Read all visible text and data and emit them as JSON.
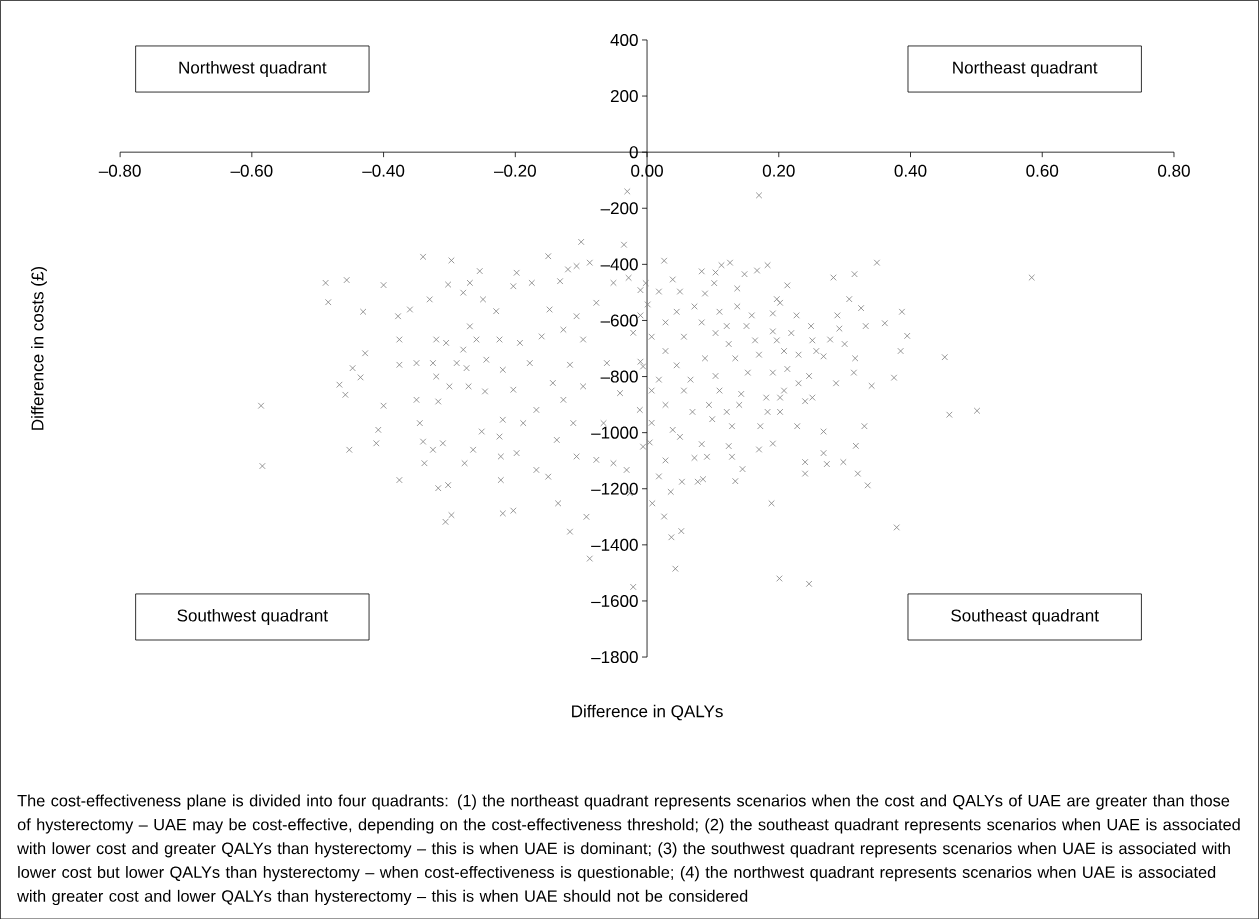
{
  "chart_data": {
    "type": "scatter",
    "xlabel": "Difference in QALYs",
    "ylabel": "Difference in costs (£)",
    "xlim": [
      -0.8,
      0.8
    ],
    "ylim": [
      -1800,
      400
    ],
    "xticks": [
      {
        "value": -0.8,
        "label": "–0.80"
      },
      {
        "value": -0.6,
        "label": "–0.60"
      },
      {
        "value": -0.4,
        "label": "–0.40"
      },
      {
        "value": -0.2,
        "label": "–0.20"
      },
      {
        "value": 0,
        "label": "0.00"
      },
      {
        "value": 0.2,
        "label": "0.20"
      },
      {
        "value": 0.4,
        "label": "0.40"
      },
      {
        "value": 0.6,
        "label": "0.60"
      },
      {
        "value": 0.8,
        "label": "0.80"
      }
    ],
    "yticks": [
      {
        "value": -1800,
        "label": "–1800"
      },
      {
        "value": -1600,
        "label": "–1600"
      },
      {
        "value": -1400,
        "label": "–1400"
      },
      {
        "value": -1200,
        "label": "–1200"
      },
      {
        "value": -1000,
        "label": "–1000"
      },
      {
        "value": -800,
        "label": "–800"
      },
      {
        "value": -600,
        "label": "–600"
      },
      {
        "value": -400,
        "label": "–400"
      },
      {
        "value": -200,
        "label": "–200"
      },
      0,
      200,
      400
    ],
    "marker": "cross",
    "color": "#808080",
    "x": [
      -0.586,
      -0.584,
      -0.488,
      -0.484,
      -0.456,
      -0.431,
      -0.428,
      -0.447,
      -0.435,
      -0.467,
      -0.458,
      -0.4,
      -0.452,
      -0.411,
      -0.408,
      -0.4,
      -0.376,
      -0.34,
      -0.297,
      -0.378,
      -0.376,
      -0.376,
      -0.35,
      -0.33,
      -0.36,
      -0.35,
      -0.345,
      -0.34,
      -0.325,
      -0.338,
      -0.317,
      -0.31,
      -0.317,
      -0.302,
      -0.306,
      -0.297,
      -0.32,
      -0.305,
      -0.325,
      -0.32,
      -0.3,
      -0.289,
      -0.274,
      -0.271,
      -0.279,
      -0.302,
      -0.279,
      -0.269,
      -0.254,
      -0.249,
      -0.269,
      -0.259,
      -0.244,
      -0.246,
      -0.264,
      -0.277,
      -0.251,
      -0.224,
      -0.229,
      -0.219,
      -0.203,
      -0.219,
      -0.224,
      -0.222,
      -0.198,
      -0.222,
      -0.219,
      -0.203,
      -0.198,
      -0.203,
      -0.175,
      -0.193,
      -0.178,
      -0.16,
      -0.148,
      -0.168,
      -0.188,
      -0.168,
      -0.15,
      -0.135,
      -0.15,
      -0.132,
      -0.12,
      -0.127,
      -0.143,
      -0.127,
      -0.137,
      -0.117,
      -0.107,
      -0.097,
      -0.097,
      -0.112,
      -0.107,
      -0.117,
      -0.092,
      -0.087,
      -0.066,
      -0.077,
      -0.051,
      -0.031,
      -0.021,
      -0.026,
      -0.061,
      -0.041,
      -0.077,
      -0.051,
      -0.028,
      -0.021,
      -0.006,
      -0.011,
      -0.006,
      -0.087,
      -0.107,
      -0.03,
      -0.1,
      -0.035,
      0.17,
      0.026,
      0.126,
      0.113,
      0.183,
      0.349,
      0.584,
      0.315,
      0.283,
      0.213,
      0.083,
      0.148,
      0.102,
      0.039,
      0.307,
      0.325,
      0.387,
      0.289,
      0.227,
      0.197,
      0.137,
      0.072,
      0.361,
      0.332,
      0.395,
      0.385,
      0.452,
      0.292,
      0.249,
      0.278,
      0.3,
      0.316,
      0.314,
      0.268,
      0.375,
      0.341,
      0.459,
      0.501,
      0.287,
      0.33,
      0.317,
      0.268,
      0.228,
      0.268,
      0.273,
      0.298,
      0.24,
      0.24,
      0.32,
      0.335,
      0.379,
      0.189,
      0.201,
      0.246,
      0.043,
      0.037,
      0.052,
      0.026,
      0.008,
      0.036,
      0.028,
      0.018,
      0.053,
      0.077,
      0.085,
      0.072,
      0.091,
      0.134,
      0.129,
      0.145,
      0.124,
      0.17,
      0.191,
      0.172,
      0.129,
      0.083,
      0.004,
      0.05,
      0.039,
      0.007,
      0.099,
      0.069,
      0.121,
      0.183,
      0.202,
      0.202,
      0.14,
      0.094,
      0.028,
      0.007,
      0.056,
      0.11,
      0.143,
      0.181,
      0.23,
      0.24,
      0.251,
      0.208,
      0.246,
      0.191,
      0.153,
      0.104,
      0.066,
      0.018,
      -0.01,
      0.045,
      0.088,
      0.134,
      0.17,
      0.208,
      0.23,
      0.257,
      0.213,
      0.164,
      0.197,
      0.124,
      0.056,
      0.007,
      0.028,
      0.104,
      0.151,
      0.191,
      0.219,
      0.251,
      0.028,
      -0.01,
      0.083,
      0.121,
      0.159,
      0.191,
      0.001,
      0.045,
      0.11,
      0.202,
      -0.01,
      0.018,
      0.05,
      0.088,
      0.137,
      -0.002,
      0.104,
      0.167
    ],
    "values": [
      -904,
      -1119,
      -466,
      -535,
      -456,
      -569,
      -717,
      -770,
      -803,
      -829,
      -865,
      -904,
      -1061,
      -1038,
      -990,
      -474,
      -1169,
      -373,
      -386,
      -585,
      -668,
      -758,
      -752,
      -525,
      -561,
      -883,
      -966,
      -1032,
      -1061,
      -1109,
      -889,
      -1038,
      -1198,
      -1187,
      -1318,
      -1294,
      -668,
      -680,
      -752,
      -800,
      -835,
      -752,
      -770,
      -835,
      -704,
      -472,
      -501,
      -466,
      -424,
      -525,
      -621,
      -668,
      -740,
      -853,
      -1061,
      -1109,
      -996,
      -668,
      -567,
      -776,
      -847,
      -954,
      -1014,
      -1085,
      -1073,
      -1169,
      -1288,
      -1278,
      -430,
      -478,
      -466,
      -680,
      -752,
      -657,
      -561,
      -919,
      -966,
      -1133,
      -1157,
      -1252,
      -371,
      -460,
      -418,
      -633,
      -823,
      -883,
      -1026,
      -758,
      -585,
      -668,
      -835,
      -966,
      -1085,
      -1353,
      -1300,
      -1449,
      -966,
      -1097,
      -1109,
      -1133,
      -1550,
      -1216,
      -752,
      -859,
      -537,
      -466,
      -448,
      -644,
      -764,
      -919,
      -1050,
      -394,
      -406,
      -140,
      -320,
      -330,
      -154,
      -387,
      -394,
      -403,
      -403,
      -394,
      -447,
      -435,
      -447,
      -475,
      -425,
      -435,
      -467,
      -454,
      -524,
      -556,
      -569,
      -582,
      -582,
      -524,
      -550,
      -550,
      -610,
      -620,
      -655,
      -709,
      -731,
      -629,
      -620,
      -668,
      -684,
      -735,
      -786,
      -728,
      -804,
      -833,
      -936,
      -922,
      -824,
      -977,
      -1047,
      -996,
      -977,
      -1073,
      -1112,
      -1105,
      -1105,
      -1146,
      -1146,
      -1188,
      -1338,
      -1252,
      -1520,
      -1539,
      -1485,
      -1373,
      -1351,
      -1299,
      -1252,
      -1211,
      -1099,
      -1156,
      -1175,
      -1175,
      -1166,
      -1090,
      -1086,
      -1173,
      -1086,
      -1130,
      -1048,
      -1060,
      -1039,
      -977,
      -977,
      -1041,
      -1035,
      -1015,
      -990,
      -965,
      -952,
      -926,
      -926,
      -926,
      -926,
      -875,
      -901,
      -901,
      -901,
      -850,
      -850,
      -850,
      -862,
      -875,
      -824,
      -888,
      -875,
      -850,
      -798,
      -786,
      -786,
      -798,
      -811,
      -811,
      -747,
      -760,
      -735,
      -735,
      -722,
      -709,
      -722,
      -709,
      -773,
      -671,
      -671,
      -684,
      -658,
      -658,
      -709,
      -645,
      -620,
      -639,
      -645,
      -671,
      -607,
      -582,
      -607,
      -620,
      -582,
      -575,
      -543,
      -569,
      -569,
      -537,
      -492,
      -497,
      -497,
      -504,
      -486,
      -467,
      -429,
      -422
    ],
    "annotations": [
      "Northwest quadrant",
      "Northeast quadrant",
      "Southwest quadrant",
      "Southeast quadrant",
      "The cost-effectiveness plane is divided into four quadrants: (1) the northeast quadrant represents scenarios when the cost and QALYs of UAE are greater than those of hysterectomy – UAE may be cost-effective, depending on the cost-effectiveness threshold; (2) the southeast quadrant represents scenarios when UAE is associated with lower cost and greater QALYs than hysterectomy – this is when UAE is dominant; (3) the southwest quadrant represents scenarios when UAE is associated with lower cost but lower QALYs than hysterectomy – when cost-effectiveness is questionable; (4) the northwest quadrant represents scenarios when UAE is associated with greater cost and lower QALYs than hysterectomy – this is when UAE should not be considered"
    ]
  }
}
